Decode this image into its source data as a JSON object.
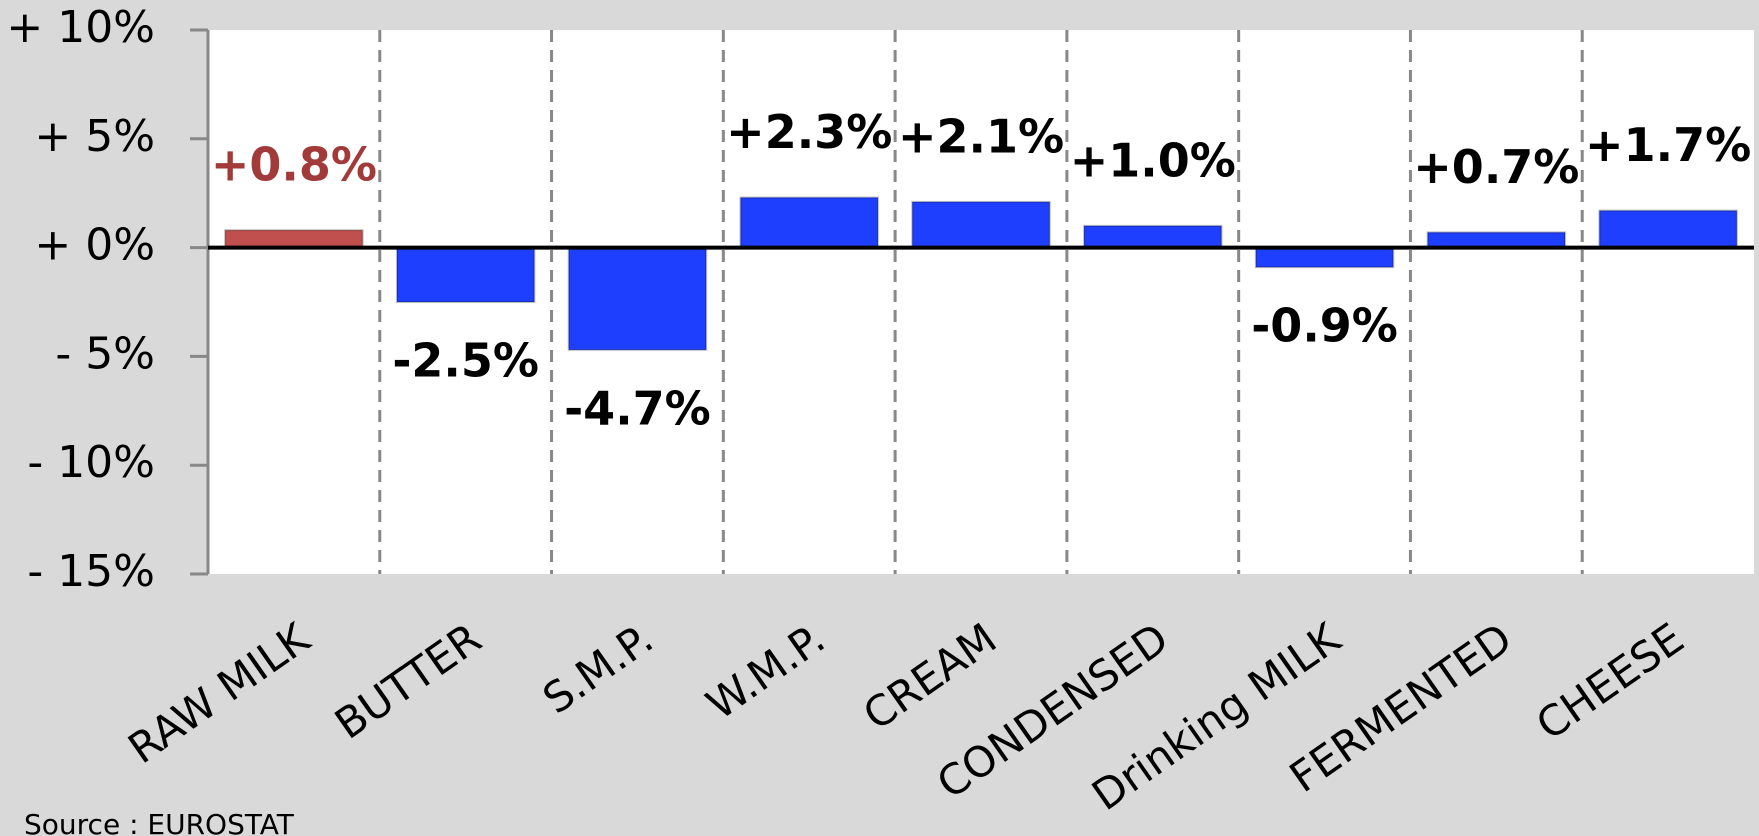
{
  "chart_data": {
    "type": "bar",
    "categories": [
      "RAW MILK",
      "BUTTER",
      "S.M.P.",
      "W.M.P.",
      "CREAM",
      "CONDENSED",
      "Drinking MILK",
      "FERMENTED",
      "CHEESE"
    ],
    "values": [
      0.8,
      -2.5,
      -4.7,
      2.3,
      2.1,
      1.0,
      -0.9,
      0.7,
      1.7
    ],
    "value_labels": [
      "+0.8%",
      "-2.5%",
      "-4.7%",
      "+2.3%",
      "+2.1%",
      "+1.0%",
      "-0.9%",
      "+0.7%",
      "+1.7%"
    ],
    "colors": [
      "#c0504d",
      "#1f3fff",
      "#1f3fff",
      "#1f3fff",
      "#1f3fff",
      "#1f3fff",
      "#1f3fff",
      "#1f3fff",
      "#1f3fff"
    ],
    "label_colors": [
      "#a33a3a",
      "#000000",
      "#000000",
      "#000000",
      "#000000",
      "#000000",
      "#000000",
      "#000000",
      "#000000"
    ],
    "ylim": [
      -15,
      10
    ],
    "yticks": [
      {
        "value": -15,
        "label": "- 15%"
      },
      {
        "value": -10,
        "label": "- 10%"
      },
      {
        "value": -5,
        "label": "- 5%"
      },
      {
        "value": 0,
        "label": "+ 0%"
      },
      {
        "value": 5,
        "label": "+ 5%"
      },
      {
        "value": 10,
        "label": "+ 10%"
      }
    ],
    "source": "Source : EUROSTAT"
  }
}
